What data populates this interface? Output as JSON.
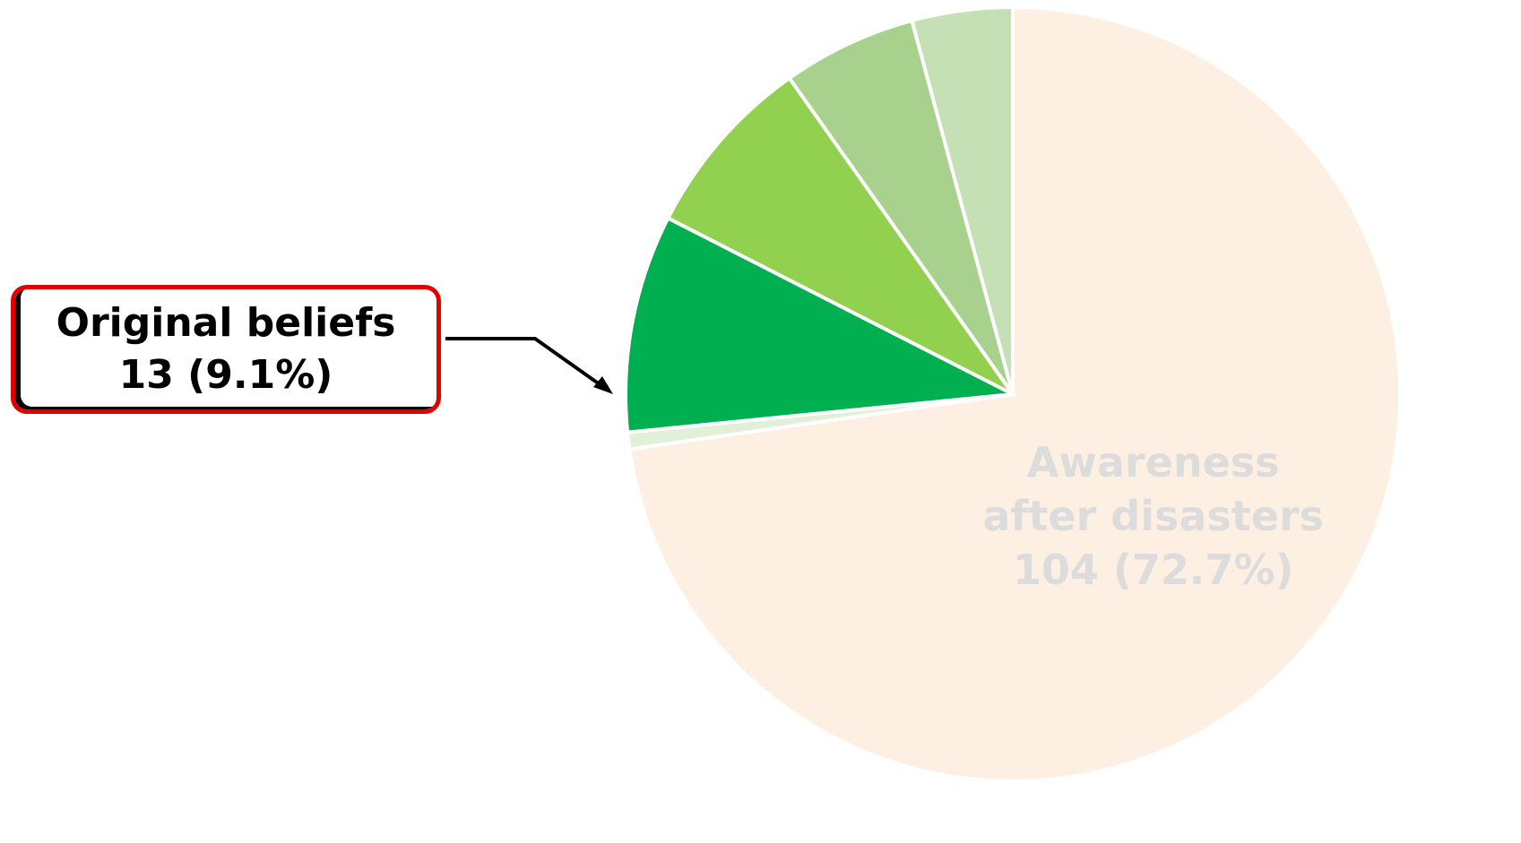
{
  "chart_data": {
    "type": "pie",
    "categories": [
      "Awareness after disasters",
      null,
      "Original beliefs",
      null,
      null,
      null
    ],
    "values": [
      104,
      1,
      13,
      11,
      8,
      6
    ],
    "value_labels": [
      "104 (72.7%)",
      null,
      "13 (9.1%)",
      null,
      null,
      null
    ],
    "colors": [
      "#fdf0e3",
      "#e2f0d9",
      "#00b050",
      "#92d050",
      "#a9d18e",
      "#c5e0b4"
    ],
    "label_colors": [
      "#dcdcdc",
      null,
      "#000000",
      null,
      null,
      null
    ],
    "start_angle": 0,
    "direction": "clockwise"
  }
}
